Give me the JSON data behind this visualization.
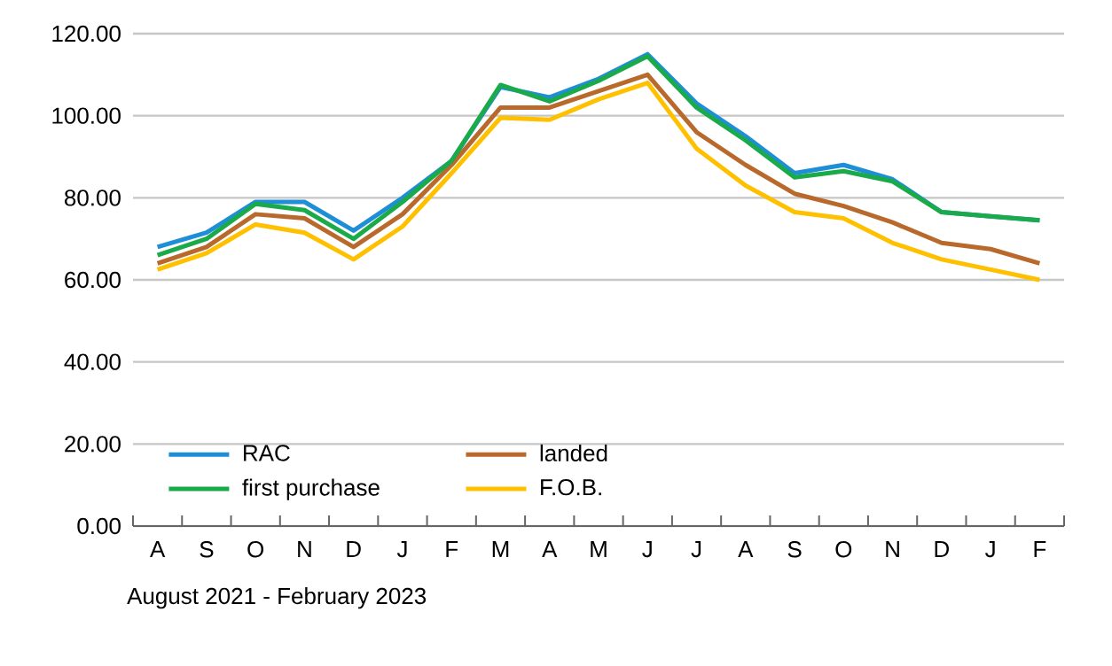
{
  "chart_data": {
    "type": "line",
    "xlabel": "August 2021  -   February 2023",
    "categories": [
      "A",
      "S",
      "O",
      "N",
      "D",
      "J",
      "F",
      "M",
      "A",
      "M",
      "J",
      "J",
      "A",
      "S",
      "O",
      "N",
      "D",
      "J",
      "F"
    ],
    "series": [
      {
        "name": "RAC",
        "color": "#1e8fd6",
        "values": [
          68,
          71.5,
          79,
          79,
          72,
          80,
          89,
          107,
          104.5,
          109,
          115,
          103,
          95,
          86,
          88,
          84.5,
          76.5,
          75.5,
          74.5
        ]
      },
      {
        "name": "landed",
        "color": "#b8692b",
        "values": [
          64,
          68,
          76,
          75,
          68,
          76,
          88,
          102,
          102,
          106,
          110,
          96,
          88,
          81,
          78,
          74,
          69,
          67.5,
          64
        ]
      },
      {
        "name": "first purchase",
        "color": "#1aaa4a",
        "values": [
          66,
          70,
          78.5,
          77,
          70,
          79,
          89,
          107.5,
          103.5,
          108.5,
          114.5,
          102,
          94,
          85,
          86.5,
          84,
          76.5,
          75.5,
          74.5
        ]
      },
      {
        "name": "F.O.B.",
        "color": "#ffc000",
        "values": [
          62.5,
          66.5,
          73.5,
          71.5,
          65,
          73,
          86,
          99.5,
          99,
          104,
          108,
          92,
          83,
          76.5,
          75,
          69,
          65,
          62.5,
          60
        ]
      }
    ],
    "ylim": [
      0,
      120
    ],
    "yticks": [
      {
        "value": 0,
        "label": "0.00"
      },
      {
        "value": 20,
        "label": "20.00"
      },
      {
        "value": 40,
        "label": "40.00"
      },
      {
        "value": 60,
        "label": "60.00"
      },
      {
        "value": 80,
        "label": "80.00"
      },
      {
        "value": 100,
        "label": "100.00"
      },
      {
        "value": 120,
        "label": "120.00"
      }
    ],
    "grid": "y",
    "legend": "bottom",
    "marker": "none",
    "line_style": "solid"
  }
}
